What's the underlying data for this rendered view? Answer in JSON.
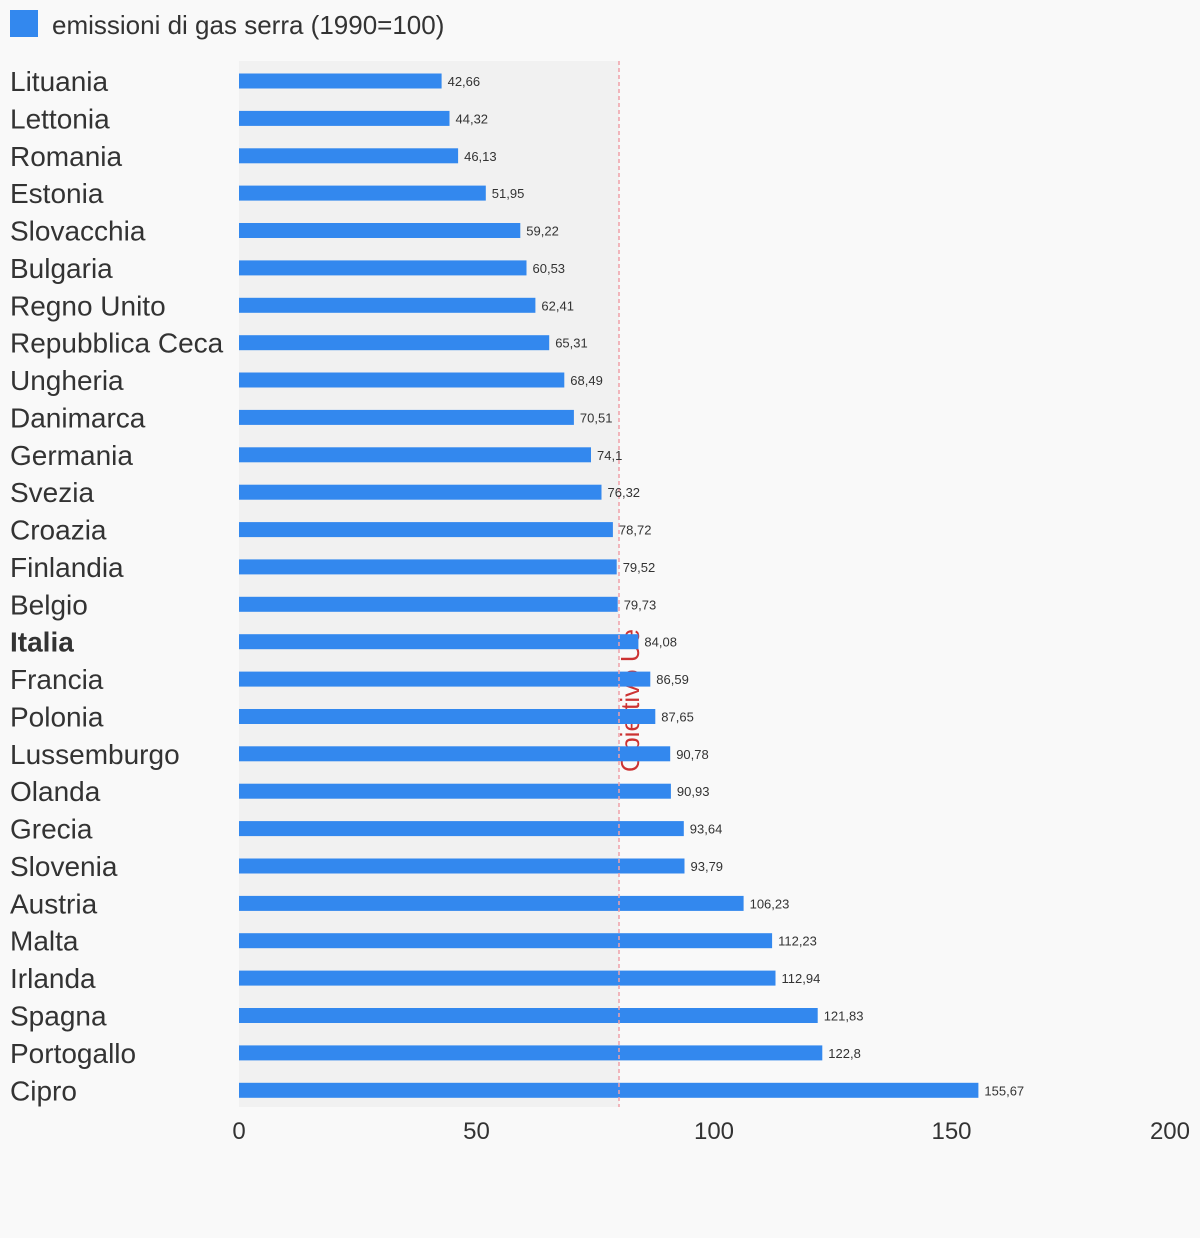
{
  "colors": {
    "bar": "#3388ee",
    "plot_background": "#f1f1f1",
    "reference_line": "#f0a0a8",
    "reference_label": "#cc3333",
    "text": "#333333"
  },
  "chart_data": {
    "type": "bar",
    "orientation": "horizontal",
    "legend": {
      "placement": "top-left",
      "entries": [
        "emissioni di gas serra (1990=100)"
      ]
    },
    "series": [
      {
        "name": "emissioni di gas serra (1990=100)",
        "values": [
          42.66,
          44.32,
          46.13,
          51.95,
          59.22,
          60.53,
          62.41,
          65.31,
          68.49,
          70.51,
          74.1,
          76.32,
          78.72,
          79.52,
          79.73,
          84.08,
          86.59,
          87.65,
          90.78,
          90.93,
          93.64,
          93.79,
          106.23,
          112.23,
          112.94,
          121.83,
          122.8,
          155.67
        ]
      }
    ],
    "categories": [
      "Lituania",
      "Lettonia",
      "Romania",
      "Estonia",
      "Slovacchia",
      "Bulgaria",
      "Regno Unito",
      "Repubblica Ceca",
      "Ungheria",
      "Danimarca",
      "Germania",
      "Svezia",
      "Croazia",
      "Finlandia",
      "Belgio",
      "Italia",
      "Francia",
      "Polonia",
      "Lussemburgo",
      "Olanda",
      "Grecia",
      "Slovenia",
      "Austria",
      "Malta",
      "Irlanda",
      "Spagna",
      "Portogallo",
      "Cipro"
    ],
    "value_labels": [
      "42,66",
      "44,32",
      "46,13",
      "51,95",
      "59,22",
      "60,53",
      "62,41",
      "65,31",
      "68,49",
      "70,51",
      "74,1",
      "76,32",
      "78,72",
      "79,52",
      "79,73",
      "84,08",
      "86,59",
      "87,65",
      "90,78",
      "90,93",
      "93,64",
      "93,79",
      "106,23",
      "112,23",
      "112,94",
      "121,83",
      "122,8",
      "155,67"
    ],
    "highlighted_category": "Italia",
    "xlim": [
      0,
      200
    ],
    "x_ticks": [
      0,
      50,
      100,
      150,
      200
    ],
    "x_tick_labels": [
      "0",
      "50",
      "100",
      "150",
      "200"
    ],
    "reference_line": {
      "value": 80,
      "label": "Obiettivo Ue",
      "style": "dashed"
    },
    "shaded_region": [
      0,
      80
    ],
    "grid": false,
    "xlabel": "",
    "ylabel": ""
  }
}
